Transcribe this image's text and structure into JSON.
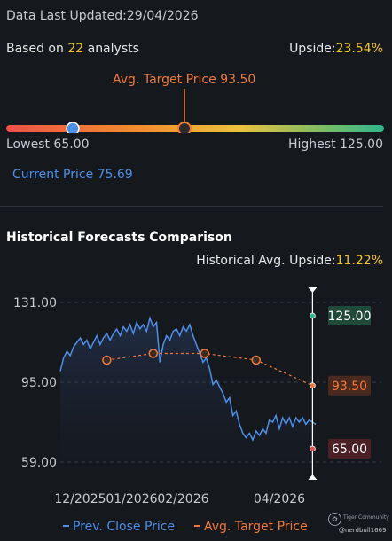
{
  "header": {
    "updated_label": "Data Last Updated:",
    "updated_value": "29/04/2026",
    "based_on_prefix": "Based on",
    "analyst_count": "22",
    "analysts_suffix": "analysts",
    "upside_label": "Upside:",
    "upside_value": "23.54%"
  },
  "range": {
    "avg_target_label": "Avg. Target Price 93.50",
    "avg_target": 93.5,
    "lowest_label": "Lowest 65.00",
    "lowest": 65.0,
    "highest_label": "Highest 125.00",
    "highest": 125.0,
    "current_label": "Current Price 75.69",
    "current": 75.69,
    "gradient": [
      "#f0504a",
      "#f48a2c",
      "#e8c33a",
      "#2fb58a"
    ]
  },
  "history": {
    "title": "Historical Forecasts Comparison",
    "avg_upside_label": "Historical Avg. Upside:",
    "avg_upside_value": "11.22%"
  },
  "chart_data": {
    "type": "line",
    "ylim": [
      59,
      131
    ],
    "y_ticks": [
      "131.00",
      "95.00",
      "59.00"
    ],
    "x_tick_labels": [
      "12/2025",
      "01/2026",
      "02/2026",
      "04/2026"
    ],
    "x_tick_positions": [
      0,
      31,
      62,
      120
    ],
    "x_range": [
      -12,
      143
    ],
    "series": [
      {
        "name": "Prev. Close Price",
        "color": "#4f8fe8",
        "x": [
          -12,
          -10,
          -8,
          -6,
          -4,
          -2,
          0,
          2,
          4,
          6,
          8,
          10,
          12,
          14,
          16,
          18,
          20,
          22,
          24,
          26,
          28,
          30,
          32,
          34,
          36,
          38,
          40,
          42,
          44,
          46,
          48,
          50,
          52,
          54,
          56,
          58,
          60,
          62,
          64,
          66,
          68,
          70,
          72,
          74,
          76,
          78,
          80,
          82,
          84,
          86,
          88,
          90,
          92,
          94,
          96,
          98,
          100,
          102,
          104,
          106,
          108,
          110,
          112,
          114,
          116,
          118,
          120,
          122,
          124,
          126,
          128,
          130,
          132,
          134,
          136,
          138,
          140,
          142
        ],
        "y": [
          100,
          106,
          109,
          107,
          111,
          113,
          115,
          112,
          114,
          110,
          113,
          116,
          112,
          115,
          117,
          114,
          117,
          119,
          116,
          120,
          118,
          121,
          117,
          122,
          119,
          121,
          118,
          124,
          120,
          122,
          104,
          112,
          116,
          114,
          118,
          119,
          116,
          120,
          118,
          121,
          116,
          112,
          108,
          104,
          106,
          101,
          94,
          96,
          93,
          90,
          86,
          88,
          80,
          82,
          76,
          72,
          70,
          72,
          69,
          73,
          71,
          74,
          72,
          78,
          77,
          80,
          74,
          79,
          76,
          79,
          75,
          79,
          77,
          79,
          76,
          78,
          77,
          76
        ]
      },
      {
        "name": "Avg. Target Price",
        "color": "#f07a3c",
        "dashed": true,
        "x": [
          16,
          44,
          75,
          106,
          140
        ],
        "y": [
          105,
          108,
          108,
          105,
          93.5
        ]
      }
    ],
    "forecast_markers": [
      {
        "label": "125.00",
        "value": 125.0,
        "color": "#2fb58a",
        "box": "#1f4a3a"
      },
      {
        "label": "93.50",
        "value": 93.5,
        "color": "#f07a3c",
        "box": "#4a2a1f"
      },
      {
        "label": "65.00",
        "value": 65.0,
        "color": "#e05050",
        "box": "#4a2024"
      }
    ],
    "legend": [
      {
        "label": "Prev. Close Price",
        "color": "#4f8fe8"
      },
      {
        "label": "Avg. Target Price",
        "color": "#f07a3c"
      }
    ]
  },
  "watermark": {
    "line1": "Tiger Community",
    "line2": "@nerdbull1669"
  }
}
